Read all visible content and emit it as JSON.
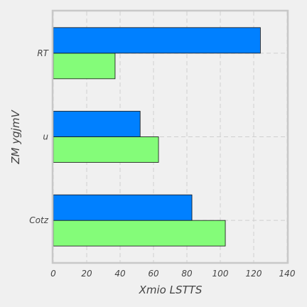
{
  "chart_data": {
    "type": "bar",
    "orientation": "horizontal",
    "title": "",
    "xlabel": "Xmio LSTTS",
    "ylabel": "ZM ygjmV",
    "categories": [
      "Cotz",
      "u",
      "RT"
    ],
    "xlim": [
      0,
      140
    ],
    "xticks": [
      0,
      20,
      40,
      60,
      80,
      100,
      120,
      140
    ],
    "grid": true,
    "legend": "none",
    "series": [
      {
        "color": "#84fc79",
        "values": [
          103,
          63,
          37
        ]
      },
      {
        "color": "#0080ff",
        "values": [
          83,
          52,
          124
        ]
      }
    ]
  }
}
